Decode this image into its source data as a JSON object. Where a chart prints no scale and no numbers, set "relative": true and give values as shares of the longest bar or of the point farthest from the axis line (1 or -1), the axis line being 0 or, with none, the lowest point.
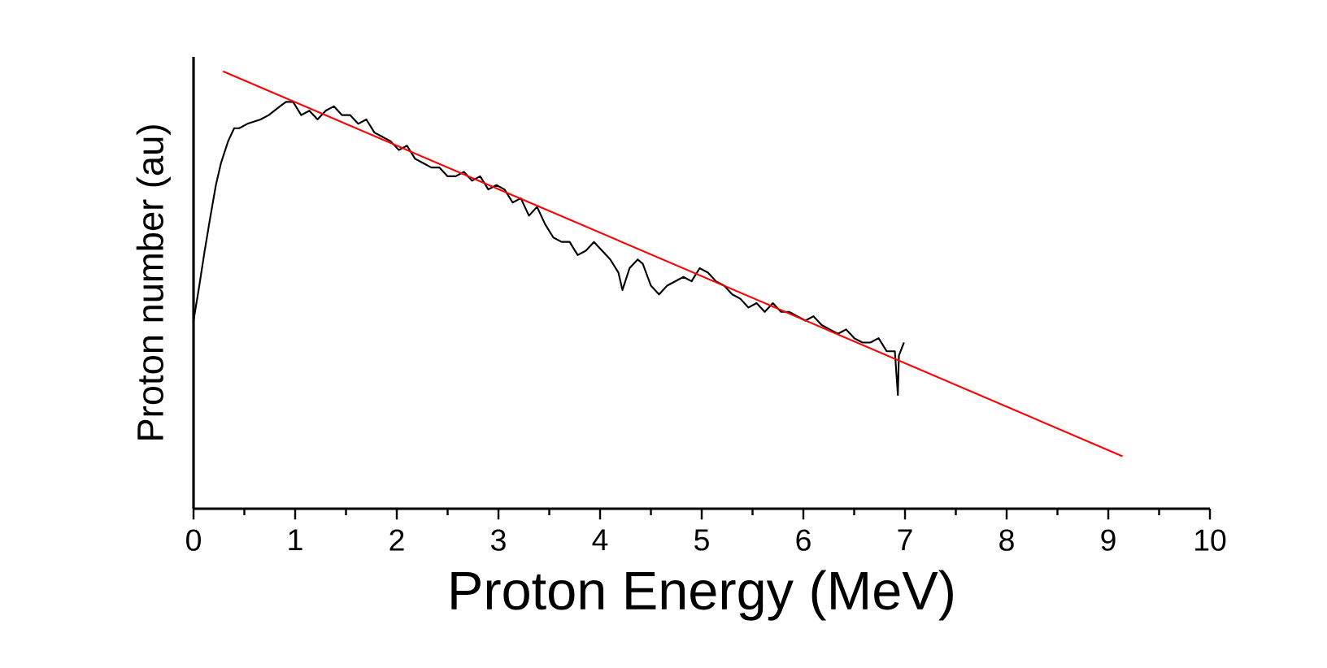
{
  "chart_data": {
    "type": "line",
    "relative": true,
    "xlabel": "Proton Energy (MeV)",
    "ylabel": "Proton number (au)",
    "xlim": [
      0,
      10
    ],
    "xticks": [
      0,
      1,
      2,
      3,
      4,
      5,
      6,
      7,
      8,
      9,
      10
    ],
    "marker": "none",
    "series": [
      {
        "color": "#000000",
        "line_style": "solid",
        "x": [
          0,
          0.05,
          0.11,
          0.16,
          0.22,
          0.27,
          0.34,
          0.4,
          0.45,
          0.53,
          0.66,
          0.74,
          0.85,
          0.91,
          0.98,
          1.06,
          1.14,
          1.22,
          1.3,
          1.38,
          1.46,
          1.54,
          1.62,
          1.7,
          1.78,
          1.86,
          1.94,
          2.02,
          2.1,
          2.18,
          2.26,
          2.34,
          2.42,
          2.5,
          2.58,
          2.66,
          2.74,
          2.82,
          2.9,
          2.98,
          3.06,
          3.14,
          3.22,
          3.3,
          3.38,
          3.46,
          3.54,
          3.62,
          3.7,
          3.78,
          3.86,
          3.94,
          4.02,
          4.1,
          4.18,
          4.22,
          4.29,
          4.37,
          4.42,
          4.5,
          4.58,
          4.66,
          4.74,
          4.82,
          4.9,
          4.98,
          5.06,
          5.14,
          5.22,
          5.3,
          5.38,
          5.46,
          5.54,
          5.62,
          5.7,
          5.78,
          5.86,
          5.94,
          6.02,
          6.1,
          6.18,
          6.26,
          6.34,
          6.42,
          6.5,
          6.58,
          6.66,
          6.74,
          6.82,
          6.9,
          6.93,
          6.94,
          6.99
        ],
        "values": [
          0.43,
          0.5,
          0.59,
          0.66,
          0.74,
          0.79,
          0.84,
          0.87,
          0.87,
          0.88,
          0.89,
          0.9,
          0.92,
          0.93,
          0.93,
          0.9,
          0.91,
          0.89,
          0.91,
          0.92,
          0.9,
          0.9,
          0.88,
          0.89,
          0.86,
          0.85,
          0.84,
          0.82,
          0.83,
          0.8,
          0.79,
          0.78,
          0.78,
          0.76,
          0.76,
          0.77,
          0.75,
          0.76,
          0.73,
          0.74,
          0.73,
          0.7,
          0.71,
          0.67,
          0.69,
          0.65,
          0.62,
          0.61,
          0.61,
          0.58,
          0.59,
          0.61,
          0.59,
          0.57,
          0.54,
          0.5,
          0.55,
          0.57,
          0.56,
          0.51,
          0.49,
          0.51,
          0.52,
          0.53,
          0.52,
          0.55,
          0.54,
          0.52,
          0.51,
          0.49,
          0.48,
          0.46,
          0.47,
          0.45,
          0.47,
          0.45,
          0.45,
          0.44,
          0.43,
          0.44,
          0.42,
          0.41,
          0.4,
          0.41,
          0.39,
          0.38,
          0.38,
          0.39,
          0.36,
          0.36,
          0.26,
          0.35,
          0.38
        ]
      },
      {
        "color": "#ff0000",
        "line_style": "solid",
        "x": [
          0.29,
          9.14
        ],
        "values": [
          1.0,
          0.12
        ]
      }
    ]
  }
}
